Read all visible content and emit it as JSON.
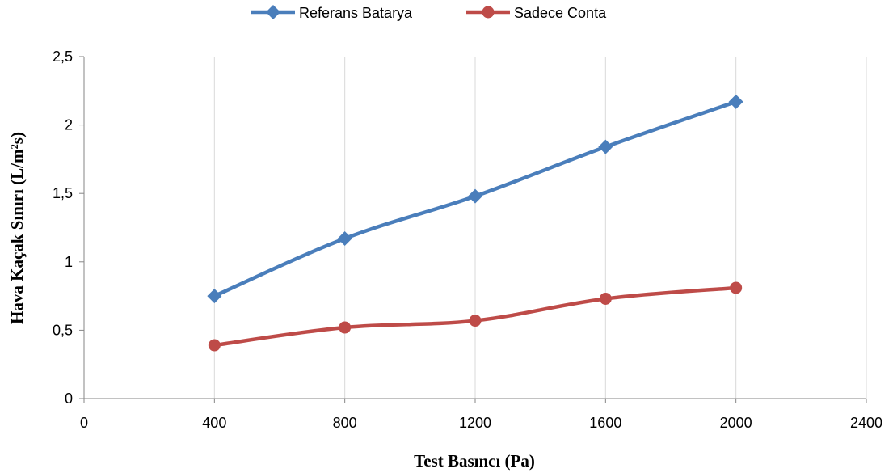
{
  "chart_data": {
    "type": "line",
    "xlabel": "Test Basıncı (Pa)",
    "ylabel": "Hava Kaçak Sınırı  (L/m²s)",
    "x": [
      400,
      800,
      1200,
      1600,
      2000
    ],
    "xlim": [
      0,
      2400
    ],
    "ylim": [
      0,
      2.5
    ],
    "x_ticks": [
      0,
      400,
      800,
      1200,
      1600,
      2000,
      2400
    ],
    "x_tick_labels": [
      "0",
      "400",
      "800",
      "1200",
      "1600",
      "2000",
      "2400"
    ],
    "y_ticks": [
      0,
      0.5,
      1,
      1.5,
      2,
      2.5
    ],
    "y_tick_labels": [
      "0",
      "0,5",
      "1",
      "1,5",
      "2",
      "2,5"
    ],
    "grid": "vertical",
    "legend_position": "top",
    "series": [
      {
        "name": "Referans Batarya",
        "values": [
          0.75,
          1.17,
          1.48,
          1.84,
          2.17
        ],
        "color": "#4a7ebb",
        "marker": "diamond"
      },
      {
        "name": "Sadece Conta",
        "values": [
          0.39,
          0.52,
          0.57,
          0.73,
          0.81
        ],
        "color": "#be4b48",
        "marker": "circle"
      }
    ]
  }
}
